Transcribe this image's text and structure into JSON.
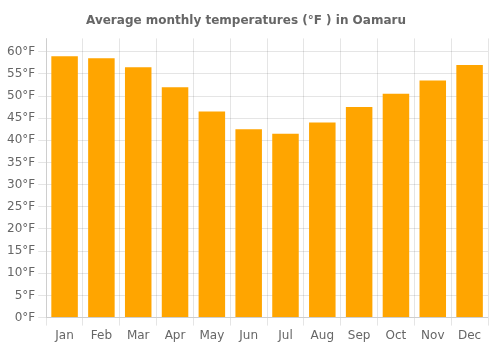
{
  "chart_data": {
    "type": "bar",
    "title": "Average monthly temperatures (°F ) in Oamaru",
    "categories": [
      "Jan",
      "Feb",
      "Mar",
      "Apr",
      "May",
      "Jun",
      "Jul",
      "Aug",
      "Sep",
      "Oct",
      "Nov",
      "Dec"
    ],
    "values": [
      59.0,
      58.5,
      56.5,
      52.0,
      46.5,
      42.5,
      41.5,
      44.0,
      47.5,
      50.5,
      53.5,
      57.0
    ],
    "color": "#FFA500",
    "ylim": [
      0,
      63
    ],
    "yticks": [
      {
        "value": 0,
        "label": "0°F"
      },
      {
        "value": 5,
        "label": "5°F"
      },
      {
        "value": 10,
        "label": "10°F"
      },
      {
        "value": 15,
        "label": "15°F"
      },
      {
        "value": 20,
        "label": "20°F"
      },
      {
        "value": 25,
        "label": "25°F"
      },
      {
        "value": 30,
        "label": "30°F"
      },
      {
        "value": 35,
        "label": "35°F"
      },
      {
        "value": 40,
        "label": "40°F"
      },
      {
        "value": 45,
        "label": "45°F"
      },
      {
        "value": 50,
        "label": "50°F"
      },
      {
        "value": 55,
        "label": "55°F"
      },
      {
        "value": 60,
        "label": "60°F"
      }
    ],
    "grid": true
  }
}
